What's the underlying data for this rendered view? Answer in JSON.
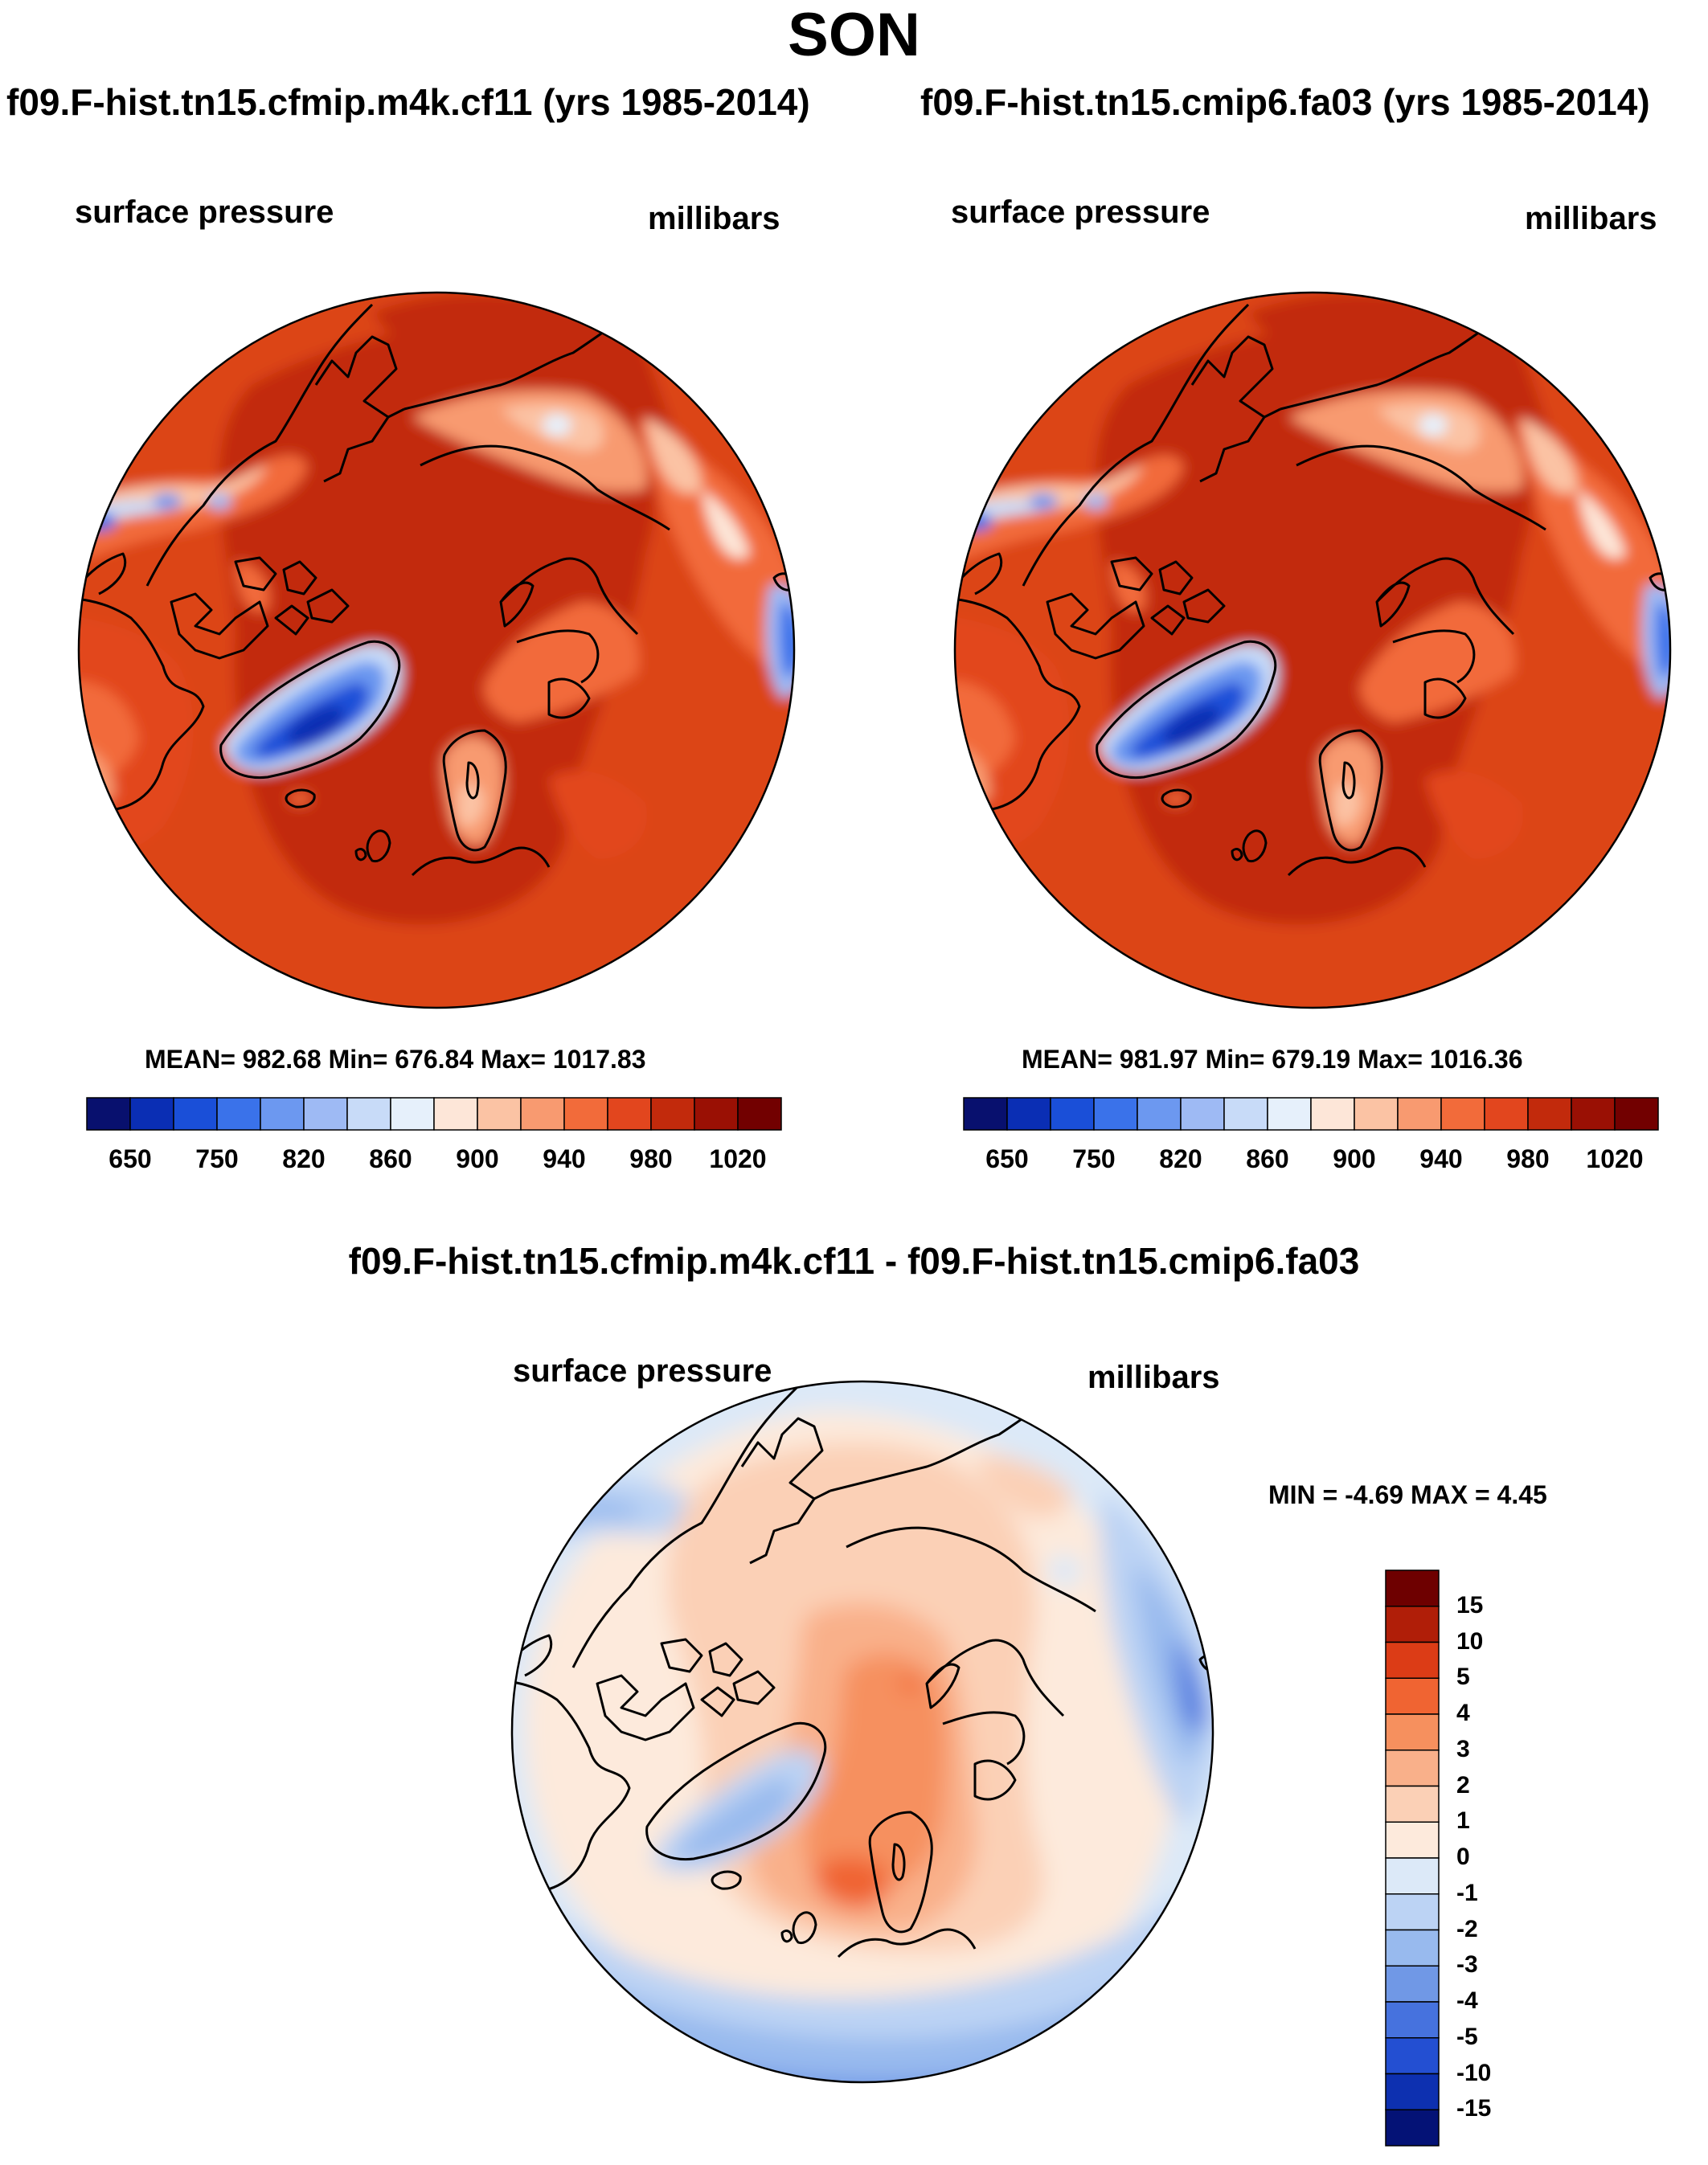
{
  "figure": {
    "title": "SON",
    "units_label": "millibars",
    "variable_label": "surface pressure"
  },
  "panel_left": {
    "title": "f09.F-hist.tn15.cfmip.m4k.cf11 (yrs 1985-2014)",
    "variable": "surface pressure",
    "units": "millibars",
    "stats": "MEAN= 982.68  Min= 676.84  Max= 1017.83"
  },
  "panel_right": {
    "title": "f09.F-hist.tn15.cmip6.fa03 (yrs 1985-2014)",
    "variable": "surface pressure",
    "units": "millibars",
    "stats": "MEAN= 981.97  Min= 679.19  Max= 1016.36"
  },
  "panel_diff": {
    "title": "f09.F-hist.tn15.cfmip.m4k.cf11 - f09.F-hist.tn15.cmip6.fa03",
    "variable": "surface pressure",
    "units": "millibars",
    "stats": "MIN =  -4.69 MAX =   4.45"
  },
  "colorbar_abs": {
    "tick_labels": [
      "650",
      "750",
      "820",
      "860",
      "900",
      "940",
      "980",
      "1020"
    ],
    "colors": [
      "#08106e",
      "#0a2eb4",
      "#1a4fd8",
      "#3a72ea",
      "#6c98f0",
      "#9ebaf4",
      "#c8dbf8",
      "#e6f0fb",
      "#fde6d8",
      "#fbc3a4",
      "#f89a70",
      "#f26b3a",
      "#e2461e",
      "#c22a0c",
      "#9a1004",
      "#720000"
    ]
  },
  "colorbar_diff": {
    "tick_labels": [
      "15",
      "10",
      "5",
      "4",
      "3",
      "2",
      "1",
      "0",
      "-1",
      "-2",
      "-3",
      "-4",
      "-5",
      "-10",
      "-15"
    ],
    "colors": [
      "#6e0000",
      "#b01e08",
      "#dc3c16",
      "#f06432",
      "#f6905e",
      "#f9b08a",
      "#fbd0b6",
      "#fdeadc",
      "#dce9f8",
      "#bcd3f4",
      "#98baee",
      "#7098e6",
      "#4672de",
      "#234fd2",
      "#0d30b0",
      "#041276"
    ]
  }
}
